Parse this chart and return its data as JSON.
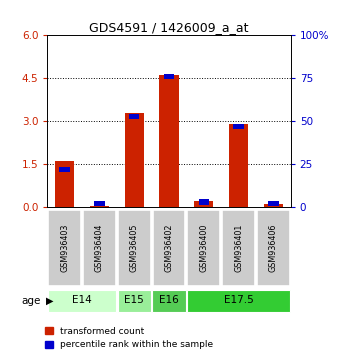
{
  "title": "GDS4591 / 1426009_a_at",
  "samples": [
    "GSM936403",
    "GSM936404",
    "GSM936405",
    "GSM936402",
    "GSM936400",
    "GSM936401",
    "GSM936406"
  ],
  "transformed_count": [
    1.62,
    0.05,
    3.3,
    4.62,
    0.2,
    2.92,
    0.1
  ],
  "percentile_pct": [
    22,
    2,
    53,
    76,
    3,
    47,
    2
  ],
  "age_groups": [
    {
      "label": "E14",
      "span": [
        0,
        2
      ],
      "color": "#ccffcc"
    },
    {
      "label": "E15",
      "span": [
        2,
        3
      ],
      "color": "#99ee99"
    },
    {
      "label": "E16",
      "span": [
        3,
        4
      ],
      "color": "#55cc55"
    },
    {
      "label": "E17.5",
      "span": [
        4,
        7
      ],
      "color": "#33cc33"
    }
  ],
  "ylim_left": [
    0,
    6
  ],
  "ylim_right": [
    0,
    100
  ],
  "yticks_left": [
    0,
    1.5,
    3.0,
    4.5,
    6.0
  ],
  "yticks_right": [
    0,
    25,
    50,
    75,
    100
  ],
  "bar_color_red": "#cc2200",
  "bar_color_blue": "#0000cc",
  "background_color": "#ffffff",
  "left_tick_color": "#cc2200",
  "right_tick_color": "#0000cc"
}
